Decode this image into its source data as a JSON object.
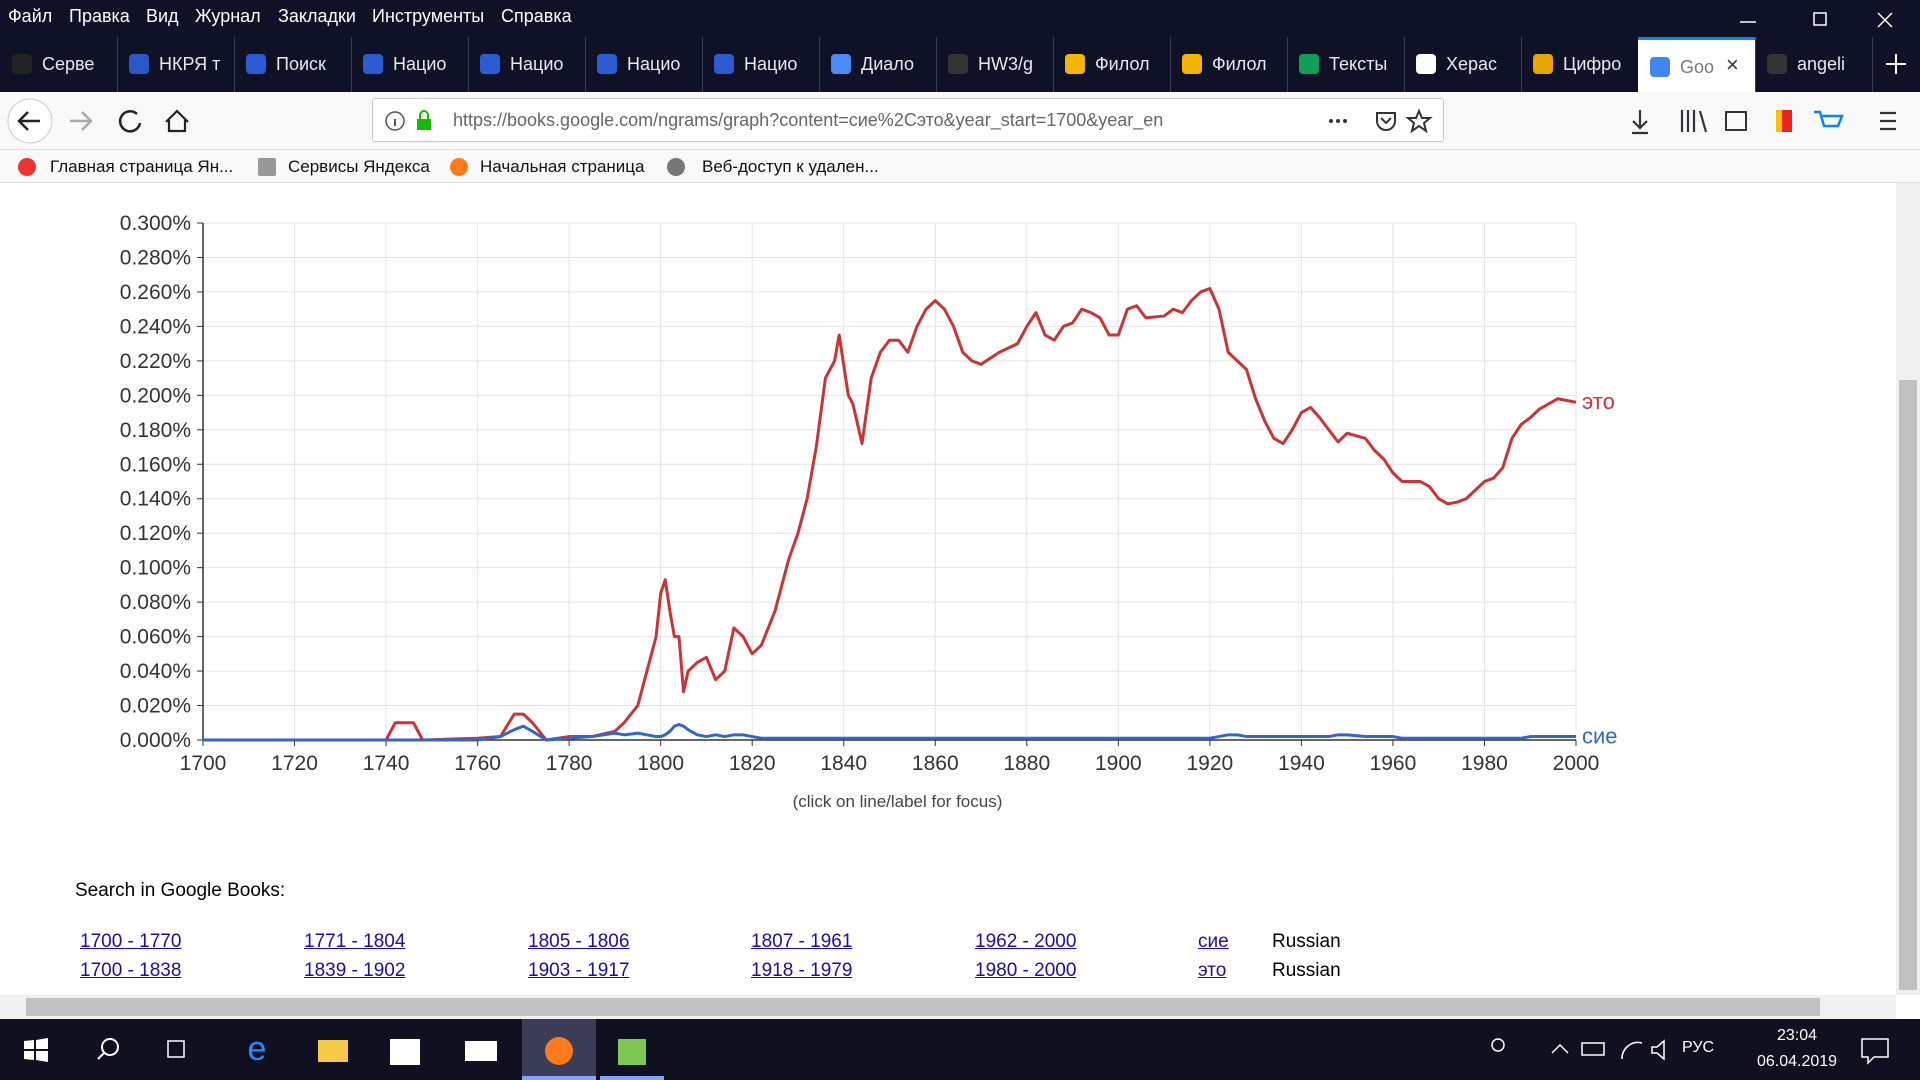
{
  "menu": [
    "Файл",
    "Правка",
    "Вид",
    "Журнал",
    "Закладки",
    "Инструменты",
    "Справка"
  ],
  "tabs": [
    "Серве",
    "НКРЯ т",
    "Поиск",
    "Нацио",
    "Нацио",
    "Нацио",
    "Нацио",
    "Диало",
    "HW3/g",
    "Филол",
    "Филол",
    "Тексты",
    "Херас",
    "Цифро",
    "Goo",
    "angeli"
  ],
  "url": "https://books.google.com/ngrams/graph?content=сие%2Cэто&year_start=1700&year_en",
  "bookmarks": [
    "Главная страница Ян...",
    "Сервисы Яндекса",
    "Начальная страница",
    "Веб-доступ к удален..."
  ],
  "chart_data": {
    "type": "line",
    "x": [
      1700,
      1720,
      1740,
      1742,
      1746,
      1748,
      1760,
      1765,
      1768,
      1770,
      1772,
      1775,
      1780,
      1785,
      1790,
      1792,
      1795,
      1797,
      1799,
      1800,
      1801,
      1802,
      1803,
      1804,
      1805,
      1806,
      1808,
      1810,
      1812,
      1814,
      1816,
      1818,
      1820,
      1822,
      1825,
      1828,
      1830,
      1832,
      1834,
      1836,
      1838,
      1839,
      1841,
      1842,
      1844,
      1846,
      1848,
      1850,
      1852,
      1854,
      1856,
      1858,
      1860,
      1862,
      1864,
      1866,
      1868,
      1870,
      1874,
      1878,
      1880,
      1882,
      1884,
      1886,
      1888,
      1890,
      1892,
      1894,
      1896,
      1898,
      1900,
      1902,
      1904,
      1906,
      1910,
      1912,
      1914,
      1916,
      1918,
      1920,
      1922,
      1924,
      1926,
      1928,
      1930,
      1932,
      1934,
      1936,
      1938,
      1940,
      1942,
      1944,
      1946,
      1948,
      1950,
      1954,
      1956,
      1958,
      1960,
      1962,
      1966,
      1968,
      1970,
      1972,
      1974,
      1976,
      1978,
      1980,
      1982,
      1984,
      1986,
      1988,
      1990,
      1992,
      1994,
      1996,
      1998,
      2000
    ],
    "series": [
      {
        "name": "это",
        "color": "#cc3333",
        "values": [
          0,
          0,
          0,
          0.01,
          0.01,
          0,
          0.001,
          0.002,
          0.015,
          0.015,
          0.01,
          0,
          0.002,
          0.002,
          0.005,
          0.01,
          0.02,
          0.04,
          0.06,
          0.085,
          0.093,
          0.075,
          0.06,
          0.06,
          0.028,
          0.04,
          0.045,
          0.048,
          0.035,
          0.04,
          0.065,
          0.06,
          0.05,
          0.055,
          0.075,
          0.105,
          0.12,
          0.14,
          0.17,
          0.21,
          0.22,
          0.235,
          0.2,
          0.195,
          0.172,
          0.21,
          0.225,
          0.232,
          0.232,
          0.225,
          0.24,
          0.25,
          0.255,
          0.25,
          0.24,
          0.225,
          0.22,
          0.218,
          0.225,
          0.23,
          0.24,
          0.248,
          0.235,
          0.232,
          0.24,
          0.242,
          0.25,
          0.248,
          0.245,
          0.235,
          0.235,
          0.25,
          0.252,
          0.245,
          0.246,
          0.25,
          0.248,
          0.255,
          0.26,
          0.262,
          0.25,
          0.225,
          0.22,
          0.215,
          0.198,
          0.185,
          0.175,
          0.172,
          0.18,
          0.19,
          0.193,
          0.187,
          0.18,
          0.173,
          0.178,
          0.175,
          0.168,
          0.163,
          0.155,
          0.15,
          0.15,
          0.147,
          0.14,
          0.137,
          0.138,
          0.14,
          0.145,
          0.15,
          0.152,
          0.158,
          0.175,
          0.183,
          0.187,
          0.192,
          0.195,
          0.198,
          0.197,
          0.196
        ]
      },
      {
        "name": "сие",
        "color": "#3366cc",
        "values": [
          0,
          0,
          0,
          0,
          0,
          0,
          0,
          0.002,
          0.006,
          0.008,
          0.005,
          0,
          0.001,
          0.002,
          0.004,
          0.003,
          0.004,
          0.003,
          0.002,
          0.002,
          0.003,
          0.005,
          0.008,
          0.009,
          0.008,
          0.006,
          0.003,
          0.002,
          0.003,
          0.002,
          0.003,
          0.003,
          0.002,
          0.001,
          0.001,
          0.001,
          0.001,
          0.001,
          0.001,
          0.001,
          0.001,
          0.001,
          0.001,
          0.001,
          0.001,
          0.001,
          0.001,
          0.001,
          0.001,
          0.001,
          0.001,
          0.001,
          0.001,
          0.001,
          0.001,
          0.001,
          0.001,
          0.001,
          0.001,
          0.001,
          0.001,
          0.001,
          0.001,
          0.001,
          0.001,
          0.001,
          0.001,
          0.001,
          0.001,
          0.001,
          0.001,
          0.001,
          0.001,
          0.001,
          0.001,
          0.001,
          0.001,
          0.001,
          0.001,
          0.001,
          0.002,
          0.003,
          0.003,
          0.002,
          0.002,
          0.002,
          0.002,
          0.002,
          0.002,
          0.002,
          0.002,
          0.002,
          0.002,
          0.003,
          0.003,
          0.002,
          0.002,
          0.002,
          0.002,
          0.001,
          0.001,
          0.001,
          0.001,
          0.001,
          0.001,
          0.001,
          0.001,
          0.001,
          0.001,
          0.001,
          0.001,
          0.001,
          0.002,
          0.002,
          0.002,
          0.002,
          0.002,
          0.002
        ]
      }
    ],
    "xlim": [
      1700,
      2000
    ],
    "xticks": [
      1700,
      1720,
      1740,
      1760,
      1780,
      1800,
      1820,
      1840,
      1860,
      1880,
      1900,
      1920,
      1940,
      1960,
      1980,
      2000
    ],
    "ylim": [
      0,
      0.3
    ],
    "yticks": [
      {
        "value": 0,
        "label": "0.000%"
      },
      {
        "value": 0.02,
        "label": "0.020%"
      },
      {
        "value": 0.04,
        "label": "0.040%"
      },
      {
        "value": 0.06,
        "label": "0.060%"
      },
      {
        "value": 0.08,
        "label": "0.080%"
      },
      {
        "value": 0.1,
        "label": "0.100%"
      },
      {
        "value": 0.12,
        "label": "0.120%"
      },
      {
        "value": 0.14,
        "label": "0.140%"
      },
      {
        "value": 0.16,
        "label": "0.160%"
      },
      {
        "value": 0.18,
        "label": "0.180%"
      },
      {
        "value": 0.2,
        "label": "0.200%"
      },
      {
        "value": 0.22,
        "label": "0.220%"
      },
      {
        "value": 0.24,
        "label": "0.240%"
      },
      {
        "value": 0.26,
        "label": "0.260%"
      },
      {
        "value": 0.28,
        "label": "0.280%"
      },
      {
        "value": 0.3,
        "label": "0.300%"
      }
    ],
    "grid": true,
    "note": "(click on line/label for focus)"
  },
  "search": {
    "title": "Search in Google Books:",
    "rows": [
      [
        "1700 - 1770",
        "1771 - 1804",
        "1805 - 1806",
        "1807 - 1961",
        "1962 - 2000",
        "сие",
        "Russian"
      ],
      [
        "1700 - 1838",
        "1839 - 1902",
        "1903 - 1917",
        "1918 - 1979",
        "1980 - 2000",
        "это",
        "Russian"
      ]
    ]
  },
  "taskbar": {
    "lang": "РУС",
    "time": "23:04",
    "date": "06.04.2019"
  }
}
